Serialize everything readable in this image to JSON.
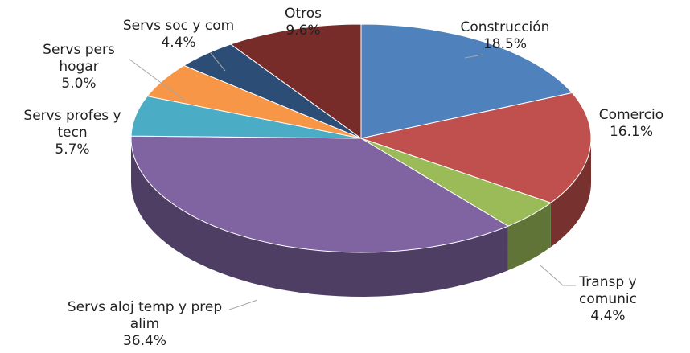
{
  "chart_data": {
    "type": "pie",
    "categories": [
      "Construcción",
      "Comercio",
      "Transp y comunic",
      "Servs aloj temp y prep alim",
      "Servs profes y tecn",
      "Servs pers hogar",
      "Servs soc y com",
      "Otros"
    ],
    "values": [
      18.5,
      16.1,
      4.4,
      36.4,
      5.7,
      5.0,
      4.4,
      9.6
    ],
    "value_labels": [
      "18.5%",
      "16.1%",
      "4.4%",
      "36.4%",
      "5.7%",
      "5.0%",
      "4.4%",
      "9.6%"
    ],
    "colors": [
      "#4f81bd",
      "#c0504d",
      "#9bbb59",
      "#8064a2",
      "#4bacc6",
      "#f79646",
      "#2c4d75",
      "#772c2a"
    ]
  }
}
